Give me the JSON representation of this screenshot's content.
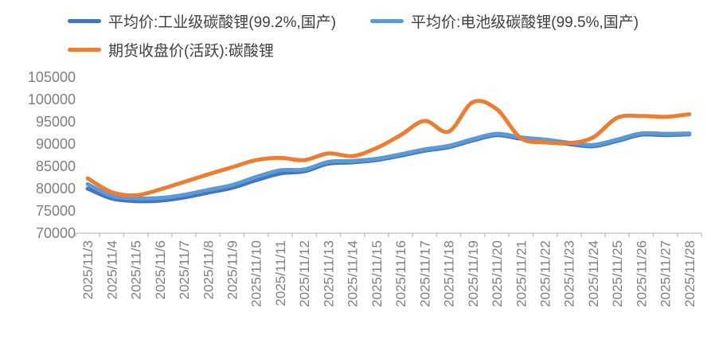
{
  "chart_data": {
    "type": "line",
    "smoothed": true,
    "grid": false,
    "legend_position": "top-left",
    "background": "#ffffff",
    "axis_color": "#bfbfbf",
    "tick_label_color": "#7f7f7f",
    "legend_text_color": "#404040",
    "categories": [
      "2025/11/3",
      "2025/11/4",
      "2025/11/5",
      "2025/11/6",
      "2025/11/7",
      "2025/11/8",
      "2025/11/9",
      "2025/11/10",
      "2025/11/11",
      "2025/11/12",
      "2025/11/13",
      "2025/11/14",
      "2025/11/15",
      "2025/11/16",
      "2025/11/17",
      "2025/11/18",
      "2025/11/19",
      "2025/11/20",
      "2025/11/21",
      "2025/11/22",
      "2025/11/23",
      "2025/11/24",
      "2025/11/25",
      "2025/11/26",
      "2025/11/27",
      "2025/11/28"
    ],
    "series": [
      {
        "name": "平均价:工业级碳酸锂(99.2%,国产)",
        "color": "#4472C4",
        "values": [
          80000,
          77800,
          77200,
          77300,
          78000,
          79100,
          80200,
          81900,
          83400,
          83900,
          85600,
          85900,
          86400,
          87400,
          88500,
          89300,
          90800,
          92000,
          91200,
          90700,
          90000,
          89500,
          90700,
          92100,
          92000,
          92200
        ]
      },
      {
        "name": "平均价:电池级碳酸锂(99.5%,国产)",
        "color": "#5B9BD5",
        "values": [
          81000,
          78400,
          77800,
          77900,
          78600,
          79700,
          80800,
          82600,
          84100,
          84300,
          86000,
          86200,
          86700,
          87700,
          88800,
          89600,
          91100,
          92300,
          91500,
          91000,
          90300,
          89800,
          91000,
          92400,
          92300,
          92400
        ]
      },
      {
        "name": "期货收盘价(活跃):碳酸锂",
        "color": "#ED7D31",
        "values": [
          82300,
          79200,
          78500,
          79800,
          81500,
          83200,
          84800,
          86400,
          86900,
          86400,
          87900,
          87300,
          89100,
          92000,
          95200,
          92800,
          99400,
          97800,
          91300,
          90400,
          90200,
          91500,
          95900,
          96300,
          96100,
          96700
        ]
      }
    ],
    "y_axis": {
      "min": 70000,
      "max": 105000,
      "step": 5000,
      "tick_labels": [
        "70000",
        "75000",
        "80000",
        "85000",
        "90000",
        "95000",
        "100000",
        "105000"
      ]
    },
    "x_axis": {
      "label_rotation": -90
    },
    "title": "",
    "xlabel": "",
    "ylabel": ""
  }
}
